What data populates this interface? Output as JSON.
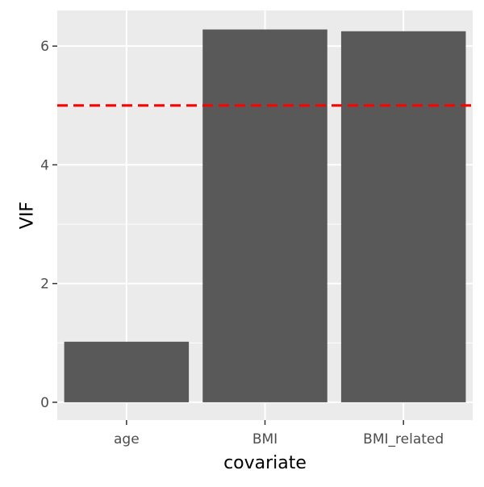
{
  "chart_data": {
    "type": "bar",
    "categories": [
      "age",
      "BMI",
      "BMI_related"
    ],
    "values": [
      1.02,
      6.28,
      6.25
    ],
    "xlabel": "covariate",
    "ylabel": "VIF",
    "ylim": [
      -0.3,
      6.6
    ],
    "y_ticks": [
      0,
      2,
      4,
      6
    ],
    "y_tick_labels": [
      "0",
      "2",
      "4",
      "6"
    ],
    "reference_line": {
      "y": 5,
      "style": "dashed",
      "color": "#ff0000"
    },
    "bar_color": "#595959",
    "panel_background": "#ebebeb",
    "grid_color": "#ffffff",
    "grid": true,
    "legend": "none"
  }
}
